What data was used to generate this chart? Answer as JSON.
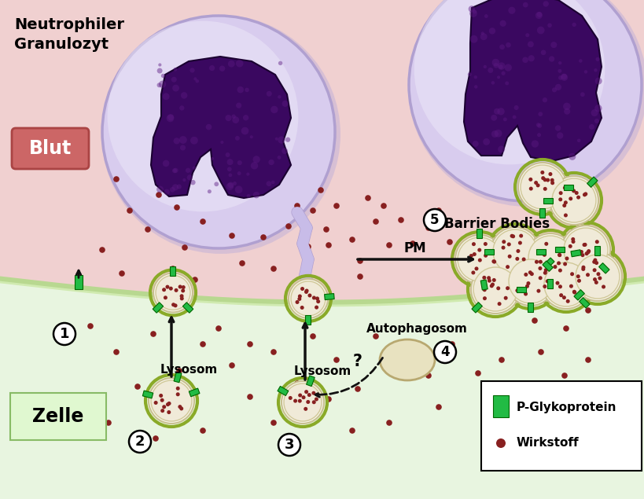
{
  "bg_blut_color": "#f0d0d0",
  "bg_zelle_color": "#e8f5e0",
  "cell_border_color": "#b8d890",
  "neutrophil_fill": "#d8ccee",
  "neutrophil_border": "#b0a0d0",
  "neutrophil_highlight": "#ede8f8",
  "nucleus_dark": "#3a0860",
  "nucleus_mid": "#5a1880",
  "nucleus_light": "#7a3090",
  "lysosome_body": "#f0ead8",
  "lysosome_ring": "#8aaa28",
  "lysosome_inner_ring": "#c8c090",
  "wirkstoff_color": "#882020",
  "pglyco_color": "#22bb44",
  "pglyco_dark": "#006600",
  "autophagosom_color": "#e8e2c0",
  "autophagosom_border": "#b8a870",
  "arrow_color": "#111111",
  "tail_color": "#c8bce8",
  "tail_border": "#a090c8",
  "blut_bg": "#cc6666",
  "blut_border": "#aa4444",
  "zelle_bg": "#e0f8d0",
  "zelle_border": "#88bb66",
  "legend_bg": "#ffffff",
  "title_text": "Neutrophiler\nGranulozyt",
  "blut_text": "Blut",
  "zelle_text": "Zelle",
  "barrier_bodies_text": "Barrier Bodies",
  "pm_text": "PM",
  "lysosom_text1": "Lysosom",
  "lysosom_text2": "Lysosom",
  "autophagosom_text": "Autophagosom",
  "pglyco_label": "P-Glykoprotein",
  "wirkstoff_label": "Wirkstoff"
}
